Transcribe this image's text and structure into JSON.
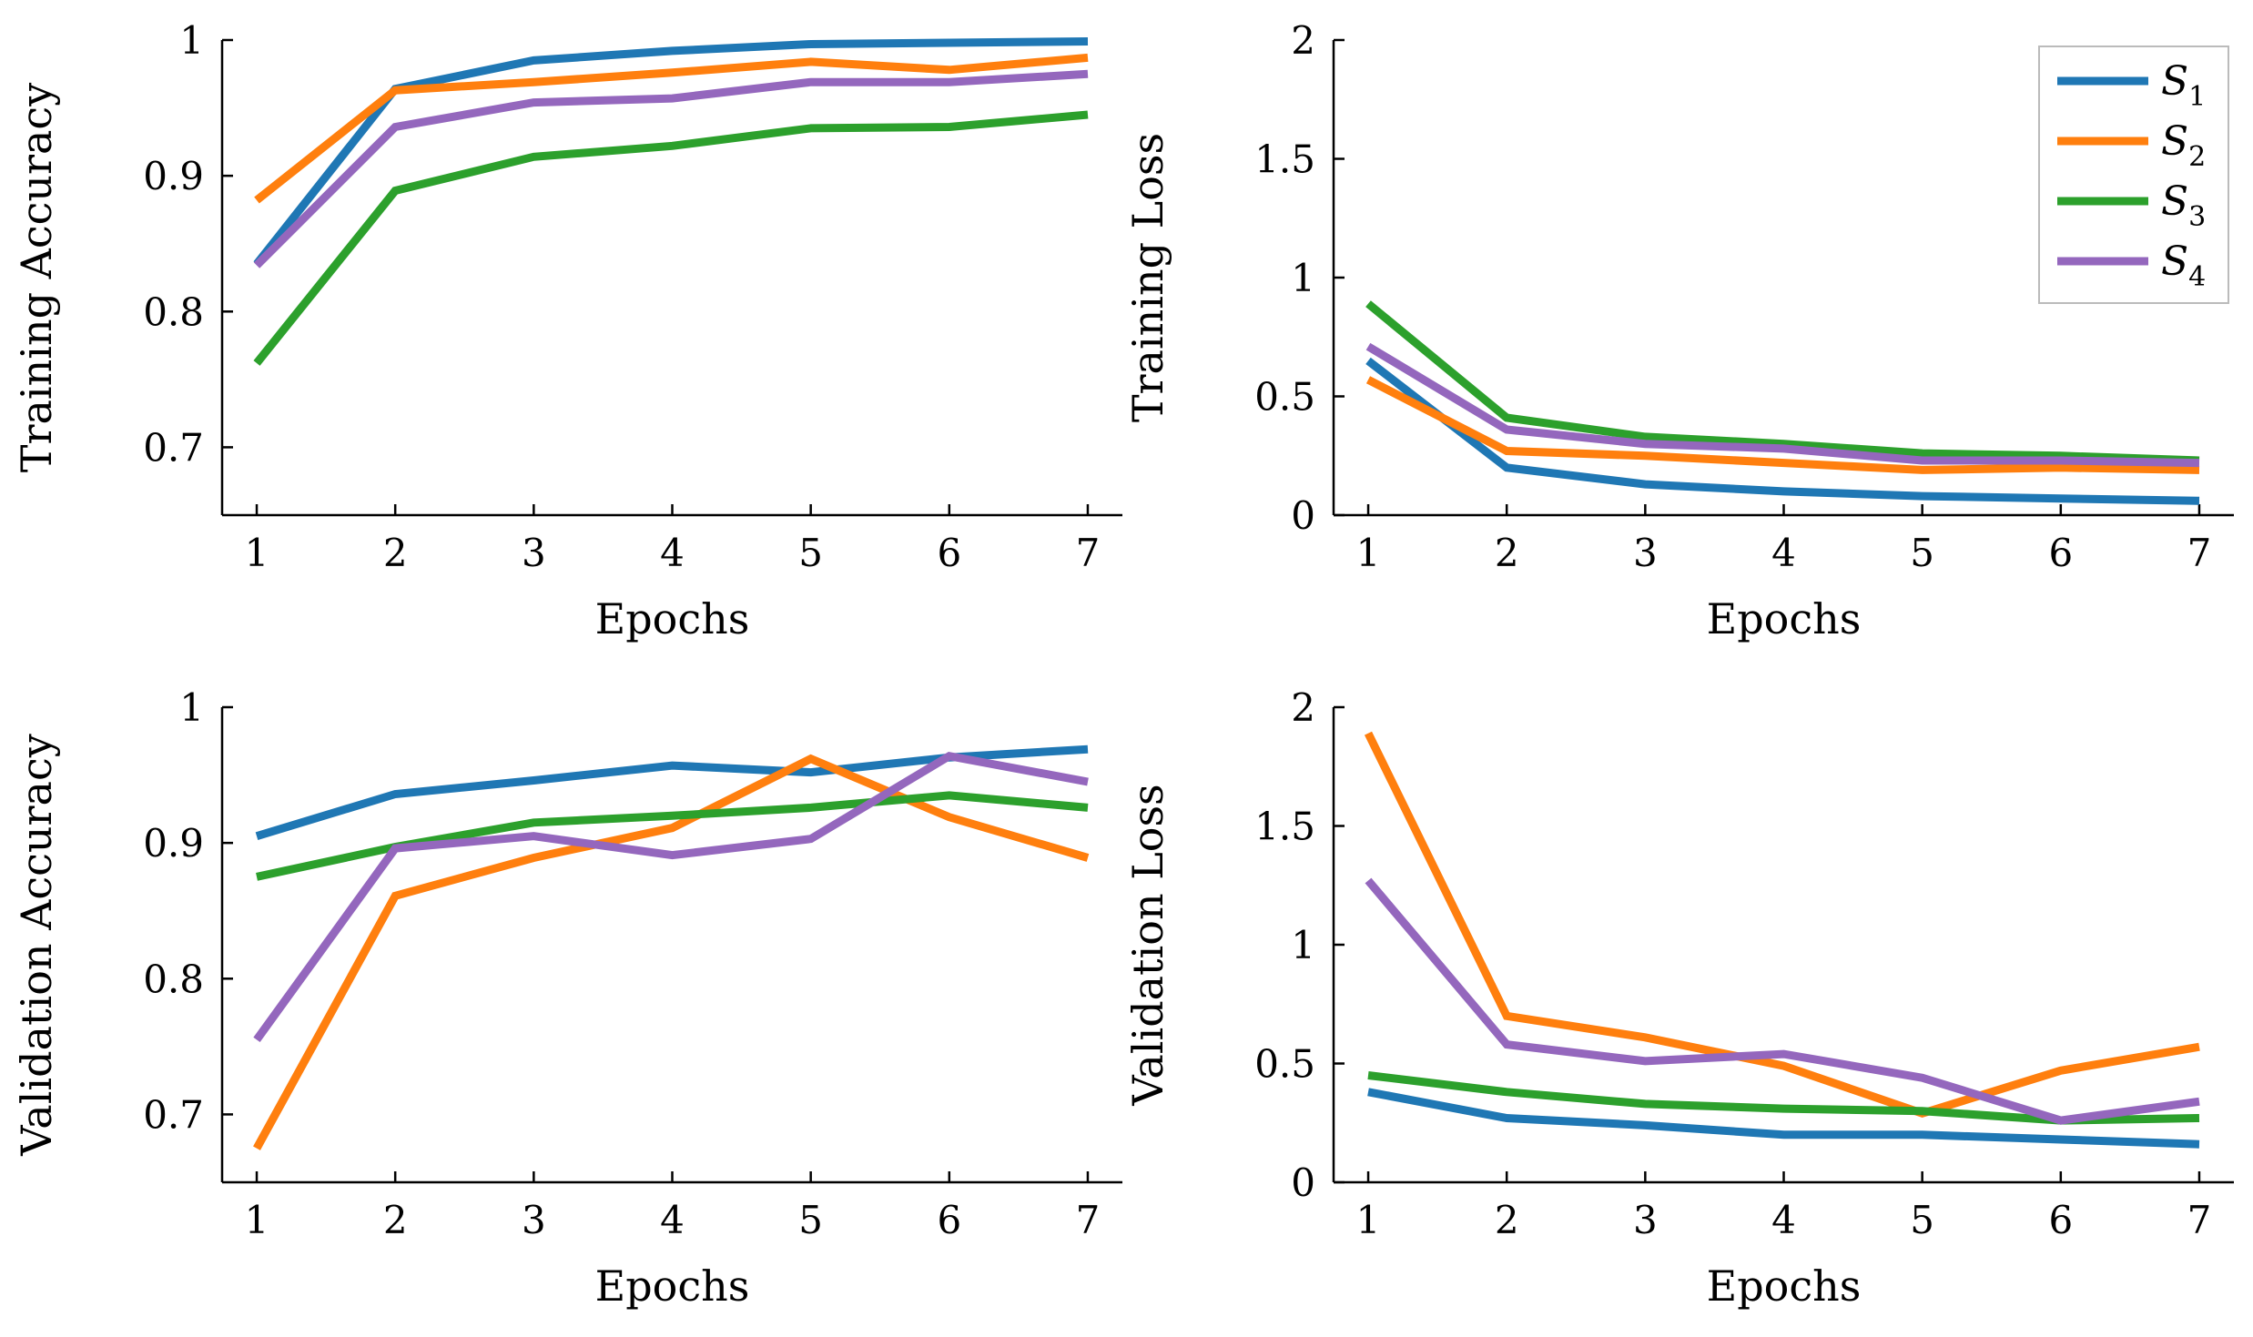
{
  "legend": {
    "entries": [
      {
        "label": "S",
        "sub": "1",
        "color": "#1f77b4"
      },
      {
        "label": "S",
        "sub": "2",
        "color": "#ff7f0e"
      },
      {
        "label": "S",
        "sub": "3",
        "color": "#2ca02c"
      },
      {
        "label": "S",
        "sub": "4",
        "color": "#9467bd"
      }
    ]
  },
  "chart_data": [
    {
      "type": "line",
      "title": "",
      "xlabel": "Epochs",
      "ylabel": "Training Accuracy",
      "x": [
        1,
        2,
        3,
        4,
        5,
        6,
        7
      ],
      "xlim": [
        0.75,
        7.25
      ],
      "ylim": [
        0.65,
        1.0
      ],
      "yticks": [
        0.7,
        0.8,
        0.9,
        1.0
      ],
      "ytick_labels": [
        "0.7",
        "0.8",
        "0.9",
        "1"
      ],
      "xtick_labels": [
        "1",
        "2",
        "3",
        "4",
        "5",
        "6",
        "7"
      ],
      "grid": false,
      "series": [
        {
          "name": "S1",
          "color": "#1f77b4",
          "values": [
            0.835,
            0.964,
            0.985,
            0.992,
            0.997,
            0.998,
            0.999
          ]
        },
        {
          "name": "S2",
          "color": "#ff7f0e",
          "values": [
            0.882,
            0.963,
            0.969,
            0.976,
            0.984,
            0.978,
            0.987
          ]
        },
        {
          "name": "S3",
          "color": "#2ca02c",
          "values": [
            0.762,
            0.889,
            0.914,
            0.922,
            0.935,
            0.936,
            0.945
          ]
        },
        {
          "name": "S4",
          "color": "#9467bd",
          "values": [
            0.834,
            0.936,
            0.954,
            0.957,
            0.969,
            0.969,
            0.975
          ]
        }
      ]
    },
    {
      "type": "line",
      "title": "",
      "xlabel": "Epochs",
      "ylabel": "Training Loss",
      "x": [
        1,
        2,
        3,
        4,
        5,
        6,
        7
      ],
      "xlim": [
        0.75,
        7.25
      ],
      "ylim": [
        0,
        2.0
      ],
      "yticks": [
        0,
        0.5,
        1.0,
        1.5,
        2.0
      ],
      "ytick_labels": [
        "0",
        "0.5",
        "1",
        "1.5",
        "2"
      ],
      "xtick_labels": [
        "1",
        "2",
        "3",
        "4",
        "5",
        "6",
        "7"
      ],
      "grid": false,
      "legend_position": "top-right",
      "series": [
        {
          "name": "S1",
          "color": "#1f77b4",
          "values": [
            0.65,
            0.2,
            0.13,
            0.1,
            0.08,
            0.07,
            0.06
          ]
        },
        {
          "name": "S2",
          "color": "#ff7f0e",
          "values": [
            0.57,
            0.27,
            0.25,
            0.22,
            0.19,
            0.2,
            0.19
          ]
        },
        {
          "name": "S3",
          "color": "#2ca02c",
          "values": [
            0.89,
            0.41,
            0.33,
            0.3,
            0.26,
            0.25,
            0.23
          ]
        },
        {
          "name": "S4",
          "color": "#9467bd",
          "values": [
            0.71,
            0.36,
            0.3,
            0.28,
            0.23,
            0.23,
            0.22
          ]
        }
      ]
    },
    {
      "type": "line",
      "title": "",
      "xlabel": "Epochs",
      "ylabel": "Validation Accuracy",
      "x": [
        1,
        2,
        3,
        4,
        5,
        6,
        7
      ],
      "xlim": [
        0.75,
        7.25
      ],
      "ylim": [
        0.65,
        1.0
      ],
      "yticks": [
        0.7,
        0.8,
        0.9,
        1.0
      ],
      "ytick_labels": [
        "0.7",
        "0.8",
        "0.9",
        "1"
      ],
      "xtick_labels": [
        "1",
        "2",
        "3",
        "4",
        "5",
        "6",
        "7"
      ],
      "grid": false,
      "series": [
        {
          "name": "S1",
          "color": "#1f77b4",
          "values": [
            0.905,
            0.936,
            0.946,
            0.957,
            0.952,
            0.963,
            0.969
          ]
        },
        {
          "name": "S2",
          "color": "#ff7f0e",
          "values": [
            0.675,
            0.861,
            0.889,
            0.911,
            0.962,
            0.919,
            0.889
          ]
        },
        {
          "name": "S3",
          "color": "#2ca02c",
          "values": [
            0.875,
            0.897,
            0.915,
            0.92,
            0.926,
            0.935,
            0.926
          ]
        },
        {
          "name": "S4",
          "color": "#9467bd",
          "values": [
            0.755,
            0.896,
            0.905,
            0.891,
            0.903,
            0.964,
            0.945
          ]
        }
      ]
    },
    {
      "type": "line",
      "title": "",
      "xlabel": "Epochs",
      "ylabel": "Validation Loss",
      "x": [
        1,
        2,
        3,
        4,
        5,
        6,
        7
      ],
      "xlim": [
        0.75,
        7.25
      ],
      "ylim": [
        0,
        2.0
      ],
      "yticks": [
        0,
        0.5,
        1.0,
        1.5,
        2.0
      ],
      "ytick_labels": [
        "0",
        "0.5",
        "1",
        "1.5",
        "2"
      ],
      "xtick_labels": [
        "1",
        "2",
        "3",
        "4",
        "5",
        "6",
        "7"
      ],
      "grid": false,
      "series": [
        {
          "name": "S1",
          "color": "#1f77b4",
          "values": [
            0.38,
            0.27,
            0.24,
            0.2,
            0.2,
            0.18,
            0.16
          ]
        },
        {
          "name": "S2",
          "color": "#ff7f0e",
          "values": [
            1.89,
            0.7,
            0.61,
            0.49,
            0.29,
            0.47,
            0.57
          ]
        },
        {
          "name": "S3",
          "color": "#2ca02c",
          "values": [
            0.45,
            0.38,
            0.33,
            0.31,
            0.3,
            0.26,
            0.27
          ]
        },
        {
          "name": "S4",
          "color": "#9467bd",
          "values": [
            1.27,
            0.58,
            0.51,
            0.54,
            0.44,
            0.26,
            0.34
          ]
        }
      ]
    }
  ]
}
